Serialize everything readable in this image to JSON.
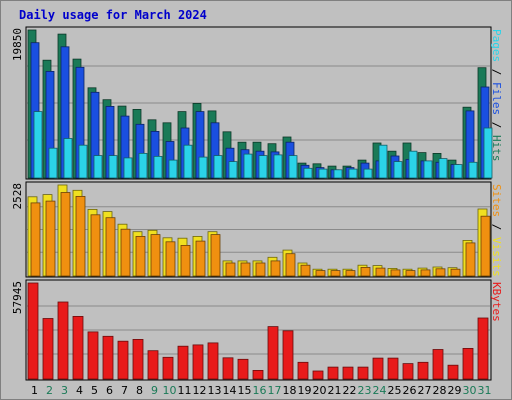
{
  "chart_data": {
    "type": "bar",
    "title": "Daily usage for March 2024",
    "categories": [
      "1",
      "2",
      "3",
      "4",
      "5",
      "6",
      "7",
      "8",
      "9",
      "10",
      "11",
      "12",
      "13",
      "14",
      "15",
      "16",
      "17",
      "18",
      "19",
      "20",
      "21",
      "22",
      "23",
      "24",
      "25",
      "26",
      "27",
      "28",
      "29",
      "30",
      "31"
    ],
    "weekend_days": [
      "2",
      "3",
      "9",
      "10",
      "16",
      "17",
      "23",
      "24",
      "30",
      "31"
    ],
    "panels": [
      {
        "id": "hits-files-pages",
        "ytick": "19850",
        "ylim": [
          0,
          19850
        ],
        "series": [
          {
            "name": "Hits",
            "color": "#1a7a57",
            "values": [
              19850,
              15800,
              19300,
              15950,
              12100,
              10500,
              9650,
              9200,
              7800,
              7400,
              8900,
              10000,
              9000,
              6200,
              4800,
              4800,
              4600,
              5500,
              2000,
              1900,
              1600,
              1600,
              2400,
              4700,
              3600,
              4700,
              3400,
              3300,
              2400,
              9500,
              14800
            ]
          },
          {
            "name": "Files",
            "color": "#1a4fe0",
            "values": [
              18150,
              14300,
              17600,
              14850,
              11500,
              9600,
              8300,
              7200,
              6250,
              4900,
              6700,
              8900,
              7400,
              4000,
              3800,
              3600,
              3500,
              4800,
              1700,
              1400,
              1100,
              1400,
              2000,
              2300,
              2950,
              2500,
              2300,
              2100,
              1800,
              9000,
              12200
            ]
          },
          {
            "name": "Pages",
            "color": "#2bd3e8",
            "values": [
              8900,
              4000,
              5300,
              4400,
              3000,
              3000,
              2700,
              3300,
              2900,
              2400,
              4400,
              2800,
              3000,
              2200,
              3200,
              3000,
              3100,
              3000,
              1300,
              1200,
              1100,
              1200,
              1200,
              4400,
              2200,
              3600,
              2300,
              2600,
              1800,
              2100,
              6700
            ]
          }
        ]
      },
      {
        "id": "visits-sites",
        "ytick": "2528",
        "ylim": [
          0,
          2528
        ],
        "series": [
          {
            "name": "Visits",
            "color": "#f0e020",
            "values": [
              2200,
              2260,
              2528,
              2380,
              1850,
              1790,
              1440,
              1230,
              1270,
              1060,
              1050,
              1100,
              1230,
              420,
              420,
              420,
              520,
              720,
              360,
              190,
              190,
              190,
              300,
              290,
              210,
              190,
              220,
              250,
              230,
              990,
              1860
            ]
          },
          {
            "name": "Sites",
            "color": "#f09010",
            "values": [
              2030,
              2080,
              2320,
              2210,
              1700,
              1620,
              1300,
              1100,
              1150,
              950,
              850,
              970,
              1150,
              360,
              360,
              360,
              420,
              620,
              300,
              150,
              150,
              150,
              240,
              220,
              170,
              150,
              170,
              200,
              190,
              920,
              1660
            ]
          }
        ]
      },
      {
        "id": "kbytes",
        "ytick": "57945",
        "ylim": [
          0,
          57945
        ],
        "series": [
          {
            "name": "KBytes",
            "color": "#e81a1a",
            "values": [
              57945,
              36500,
              46500,
              37800,
              28400,
              25800,
              22800,
              23900,
              17100,
              13100,
              19800,
              20600,
              21800,
              12800,
              11900,
              5200,
              31600,
              29100,
              10100,
              4800,
              7200,
              7200,
              7200,
              12600,
              12600,
              9300,
              10100,
              17800,
              8300,
              18500,
              36800
            ]
          }
        ]
      }
    ],
    "right_labels": [
      {
        "panel": "hits-files-pages",
        "parts": [
          {
            "text": "Pages",
            "color": "#2bd3e8"
          },
          {
            "text": " / ",
            "color": "#000000"
          },
          {
            "text": "Files",
            "color": "#1a4fe0"
          },
          {
            "text": " / ",
            "color": "#000000"
          },
          {
            "text": "Hits",
            "color": "#1a7a57"
          }
        ]
      },
      {
        "panel": "visits-sites",
        "parts": [
          {
            "text": "Sites",
            "color": "#f09010"
          },
          {
            "text": " / ",
            "color": "#000000"
          },
          {
            "text": "Visits",
            "color": "#f0e020"
          }
        ]
      },
      {
        "panel": "kbytes",
        "parts": [
          {
            "text": "KBytes",
            "color": "#e81a1a"
          }
        ]
      }
    ],
    "colors": {
      "title": "#0000cc",
      "weekday_label": "#000000",
      "weekend_label": "#1a7a57",
      "plot_bg": "#c0c0c0",
      "frame_bg": "#c0c0c0"
    },
    "grid": true,
    "legend": "right"
  }
}
